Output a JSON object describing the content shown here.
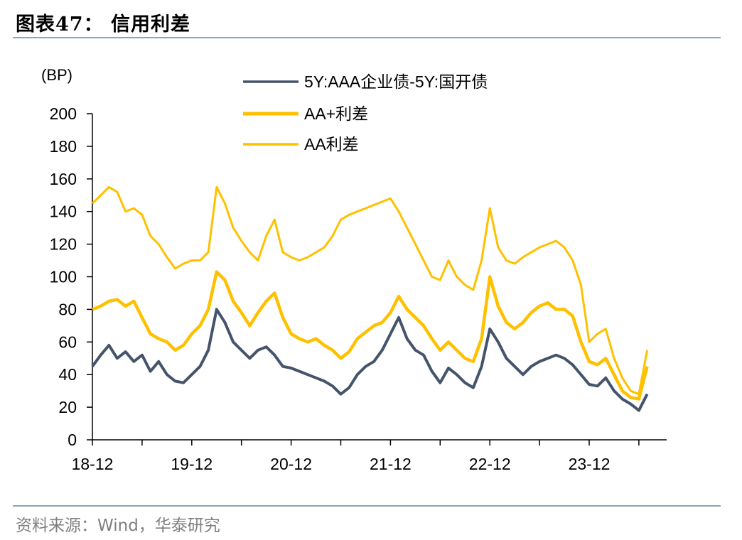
{
  "title": "图表47： 信用利差",
  "source": "资料来源：Wind，华泰研究",
  "chart_data": {
    "type": "line",
    "ylabel": "(BP)",
    "ylim": [
      0,
      200
    ],
    "yticks": [
      "0",
      "20",
      "40",
      "60",
      "80",
      "100",
      "120",
      "140",
      "160",
      "180",
      "200"
    ],
    "xticks": [
      "18-12",
      "19-12",
      "20-12",
      "21-12",
      "22-12",
      "23-12"
    ],
    "x": [
      "2018-12",
      "2019-01",
      "2019-02",
      "2019-03",
      "2019-04",
      "2019-05",
      "2019-06",
      "2019-07",
      "2019-08",
      "2019-09",
      "2019-10",
      "2019-11",
      "2019-12",
      "2020-01",
      "2020-02",
      "2020-03",
      "2020-04",
      "2020-05",
      "2020-06",
      "2020-07",
      "2020-08",
      "2020-09",
      "2020-10",
      "2020-11",
      "2020-12",
      "2021-01",
      "2021-02",
      "2021-03",
      "2021-04",
      "2021-05",
      "2021-06",
      "2021-07",
      "2021-08",
      "2021-09",
      "2021-10",
      "2021-11",
      "2021-12",
      "2022-01",
      "2022-02",
      "2022-03",
      "2022-04",
      "2022-05",
      "2022-06",
      "2022-07",
      "2022-08",
      "2022-09",
      "2022-10",
      "2022-11",
      "2022-12",
      "2023-01",
      "2023-02",
      "2023-03",
      "2023-04",
      "2023-05",
      "2023-06",
      "2023-07",
      "2023-08",
      "2023-09",
      "2023-10",
      "2023-11",
      "2023-12",
      "2024-01",
      "2024-02",
      "2024-03",
      "2024-04",
      "2024-05",
      "2024-06",
      "2024-07"
    ],
    "legend": [
      "5Y:AAA企业债-5Y:国开债",
      "AA+利差",
      "AA利差"
    ],
    "series": [
      {
        "name": "5Y:AAA企业债-5Y:国开债",
        "color": "#44546A",
        "values": [
          45,
          52,
          58,
          50,
          54,
          48,
          52,
          42,
          48,
          40,
          36,
          35,
          40,
          45,
          55,
          80,
          72,
          60,
          55,
          50,
          55,
          57,
          52,
          45,
          44,
          42,
          40,
          38,
          36,
          33,
          28,
          32,
          40,
          45,
          48,
          55,
          65,
          75,
          62,
          55,
          52,
          42,
          35,
          44,
          40,
          35,
          32,
          45,
          68,
          60,
          50,
          45,
          40,
          45,
          48,
          50,
          52,
          50,
          46,
          40,
          34,
          33,
          38,
          30,
          25,
          22,
          18,
          28
        ]
      },
      {
        "name": "AA+利差",
        "color": "#FFC000",
        "values": [
          80,
          82,
          85,
          86,
          82,
          85,
          75,
          65,
          62,
          60,
          55,
          58,
          65,
          70,
          80,
          103,
          98,
          85,
          78,
          70,
          78,
          85,
          90,
          75,
          65,
          62,
          60,
          62,
          58,
          55,
          50,
          54,
          62,
          66,
          70,
          72,
          78,
          88,
          80,
          75,
          70,
          62,
          55,
          60,
          55,
          50,
          48,
          62,
          100,
          82,
          72,
          68,
          72,
          78,
          82,
          84,
          80,
          80,
          76,
          60,
          48,
          46,
          50,
          40,
          30,
          26,
          25,
          45
        ]
      },
      {
        "name": "AA利差",
        "color": "#FFC000",
        "values": [
          145,
          150,
          155,
          152,
          140,
          142,
          138,
          125,
          120,
          112,
          105,
          108,
          110,
          110,
          115,
          155,
          145,
          130,
          122,
          115,
          110,
          125,
          135,
          115,
          112,
          110,
          112,
          115,
          118,
          125,
          135,
          138,
          140,
          142,
          144,
          146,
          148,
          140,
          130,
          120,
          110,
          100,
          98,
          110,
          100,
          95,
          92,
          110,
          142,
          118,
          110,
          108,
          112,
          115,
          118,
          120,
          122,
          118,
          110,
          95,
          60,
          65,
          68,
          50,
          38,
          30,
          28,
          55
        ]
      }
    ]
  }
}
